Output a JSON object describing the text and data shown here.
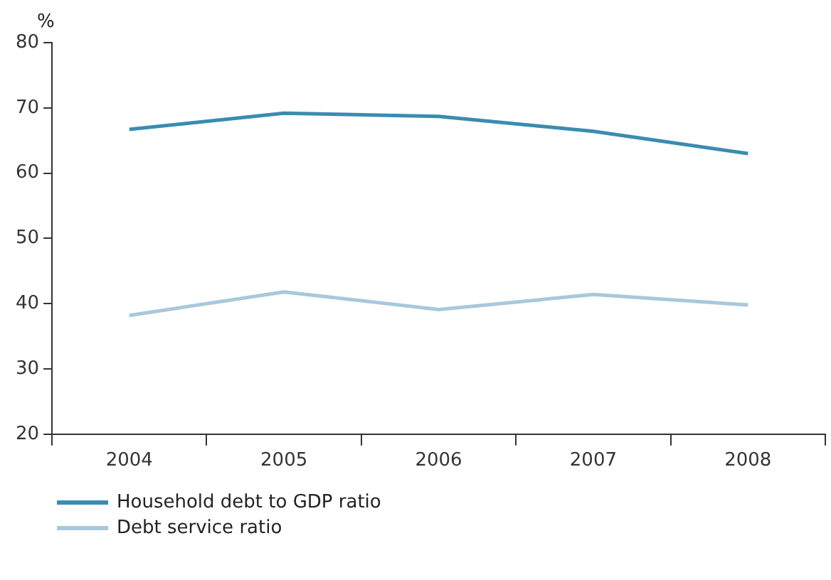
{
  "chart_data": {
    "type": "line",
    "ylabel": "%",
    "categories": [
      "2004",
      "2005",
      "2006",
      "2007",
      "2008"
    ],
    "series": [
      {
        "name": "Household debt to GDP ratio",
        "color": "#3a8cb0",
        "values": [
          66.7,
          69.2,
          68.7,
          66.4,
          63.0
        ]
      },
      {
        "name": "Debt service ratio",
        "color": "#a8c8dc",
        "values": [
          38.2,
          41.8,
          39.1,
          41.4,
          39.8
        ]
      }
    ],
    "ylim": [
      20,
      80
    ],
    "yticks": [
      20,
      30,
      40,
      50,
      60,
      70,
      80
    ],
    "grid": false,
    "legend": "bottom left",
    "marker": "none",
    "line_style": "solid"
  }
}
